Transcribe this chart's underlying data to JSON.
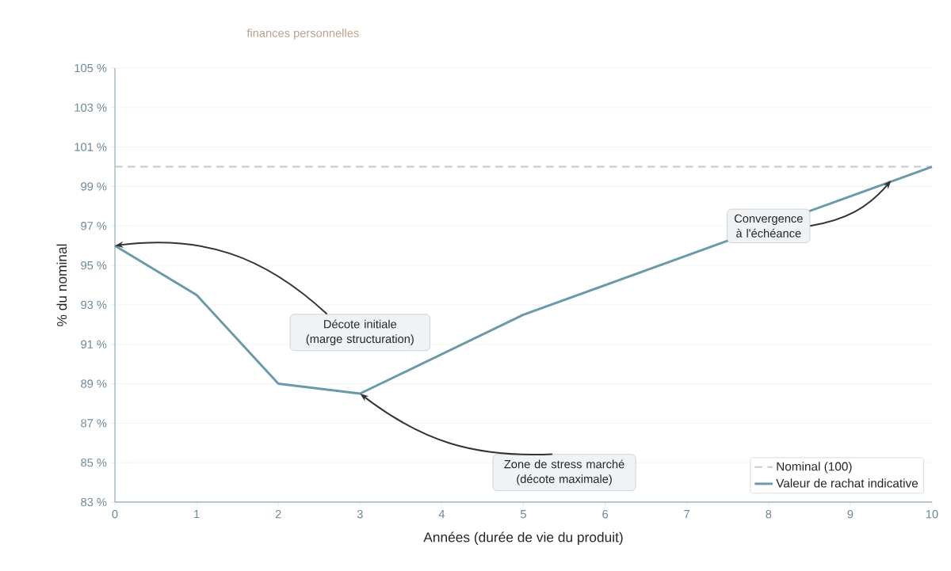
{
  "chart_data": {
    "type": "line",
    "subtitle": "finances personnelles",
    "xlabel": "Années (durée de vie du produit)",
    "ylabel": "% du nominal",
    "x": [
      0,
      1,
      2,
      3,
      5,
      10
    ],
    "series": [
      {
        "name": "Valeur de rachat indicative",
        "color": "#6a9aa8",
        "values": [
          96,
          93.5,
          89,
          88.5,
          92.5,
          100
        ]
      }
    ],
    "xlim": [
      0,
      10
    ],
    "xticks": [
      0,
      1,
      2,
      3,
      4,
      5,
      6,
      7,
      8,
      9,
      10
    ],
    "ylim": [
      83,
      105
    ],
    "yticks": [
      {
        "value": 83,
        "label": "83 %"
      },
      {
        "value": 85,
        "label": "85 %"
      },
      {
        "value": 87,
        "label": "87 %"
      },
      {
        "value": 89,
        "label": "89 %"
      },
      {
        "value": 91,
        "label": "91 %"
      },
      {
        "value": 93,
        "label": "93 %"
      },
      {
        "value": 95,
        "label": "95 %"
      },
      {
        "value": 97,
        "label": "97 %"
      },
      {
        "value": 99,
        "label": "99 %"
      },
      {
        "value": 101,
        "label": "101 %"
      },
      {
        "value": 103,
        "label": "103 %"
      },
      {
        "value": 105,
        "label": "105 %"
      }
    ],
    "ref_lines": [
      {
        "axis": "y",
        "value": 100,
        "label": "Nominal (100)",
        "color": "#c8c8c8",
        "line_style": "dashed"
      }
    ],
    "annotations": [
      {
        "text": "Décote initiale (marge structuration)",
        "x": 0,
        "y": 96
      },
      {
        "text": "Zone de stress marché (décote maximale)",
        "x": 3,
        "y": 88.5
      },
      {
        "text": "Convergence à l'échéance",
        "x": 9.5,
        "y": 99.3
      }
    ],
    "grid": "y",
    "legend": "bottom right",
    "marker": "none",
    "line_style": "solid"
  }
}
